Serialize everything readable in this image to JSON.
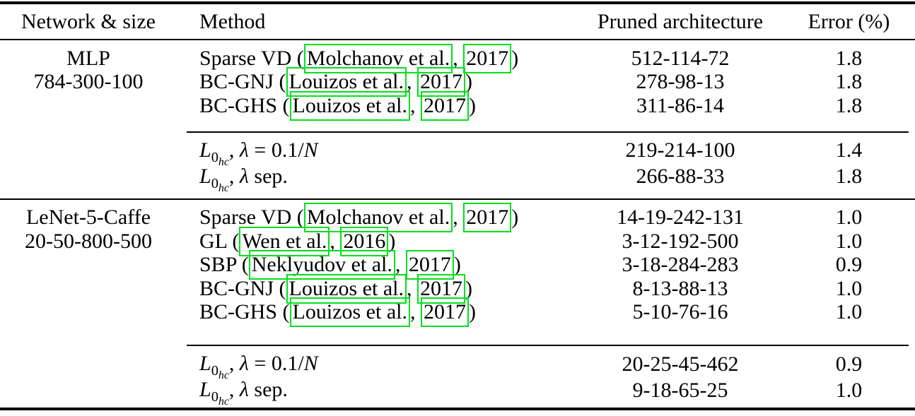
{
  "page": {
    "background": "#ffffff",
    "text_color": "#000000",
    "rule_color": "#000000",
    "citation_box_color": "#00e01b"
  },
  "header": {
    "col_network": "Network & size",
    "col_method": "Method",
    "col_pruned": "Pruned architecture",
    "col_error": "Error (%)"
  },
  "sections": [
    {
      "network_name": "MLP",
      "network_size": "784-300-100",
      "rows": [
        {
          "prefix": "Sparse VD (",
          "author": "Molchanov et al.",
          "sep": ", ",
          "year": "2017",
          "suffix": ")",
          "pruned": "512-114-72",
          "error": "1.8"
        },
        {
          "prefix": "BC-GNJ (",
          "author": "Louizos et al.",
          "sep": ", ",
          "year": "2017",
          "suffix": ")",
          "pruned": "278-98-13",
          "error": "1.8"
        },
        {
          "prefix": "BC-GHS (",
          "author": "Louizos et al.",
          "sep": ", ",
          "year": "2017",
          "suffix": ")",
          "pruned": "311-86-14",
          "error": "1.8"
        }
      ],
      "l0_rows": [
        {
          "base": "L",
          "sub": "0",
          "subsub": "hc",
          "comma": ", ",
          "lambda": "λ",
          "tail": " = 0.1/",
          "tail_italic": "N",
          "pruned": "219-214-100",
          "error": "1.4"
        },
        {
          "base": "L",
          "sub": "0",
          "subsub": "hc",
          "comma": ", ",
          "lambda": "λ",
          "tail": " sep.",
          "tail_italic": "",
          "pruned": "266-88-33",
          "error": "1.8"
        }
      ]
    },
    {
      "network_name": "LeNet-5-Caffe",
      "network_size": "20-50-800-500",
      "rows": [
        {
          "prefix": "Sparse VD (",
          "author": "Molchanov et al.",
          "sep": ", ",
          "year": "2017",
          "suffix": ")",
          "pruned": "14-19-242-131",
          "error": "1.0"
        },
        {
          "prefix": "GL (",
          "author": "Wen et al.",
          "sep": ", ",
          "year": "2016",
          "suffix": ")",
          "pruned": "3-12-192-500",
          "error": "1.0"
        },
        {
          "prefix": "SBP (",
          "author": "Neklyudov et al.",
          "sep": ", ",
          "year": "2017",
          "suffix": ")",
          "pruned": "3-18-284-283",
          "error": "0.9"
        },
        {
          "prefix": "BC-GNJ (",
          "author": "Louizos et al.",
          "sep": ", ",
          "year": "2017",
          "suffix": ")",
          "pruned": "8-13-88-13",
          "error": "1.0"
        },
        {
          "prefix": "BC-GHS (",
          "author": "Louizos et al.",
          "sep": ", ",
          "year": "2017",
          "suffix": ")",
          "pruned": "5-10-76-16",
          "error": "1.0"
        }
      ],
      "l0_rows": [
        {
          "base": "L",
          "sub": "0",
          "subsub": "hc",
          "comma": ", ",
          "lambda": "λ",
          "tail": " = 0.1/",
          "tail_italic": "N",
          "pruned": "20-25-45-462",
          "error": "0.9"
        },
        {
          "base": "L",
          "sub": "0",
          "subsub": "hc",
          "comma": ", ",
          "lambda": "λ",
          "tail": " sep.",
          "tail_italic": "",
          "pruned": "9-18-65-25",
          "error": "1.0"
        }
      ]
    }
  ]
}
